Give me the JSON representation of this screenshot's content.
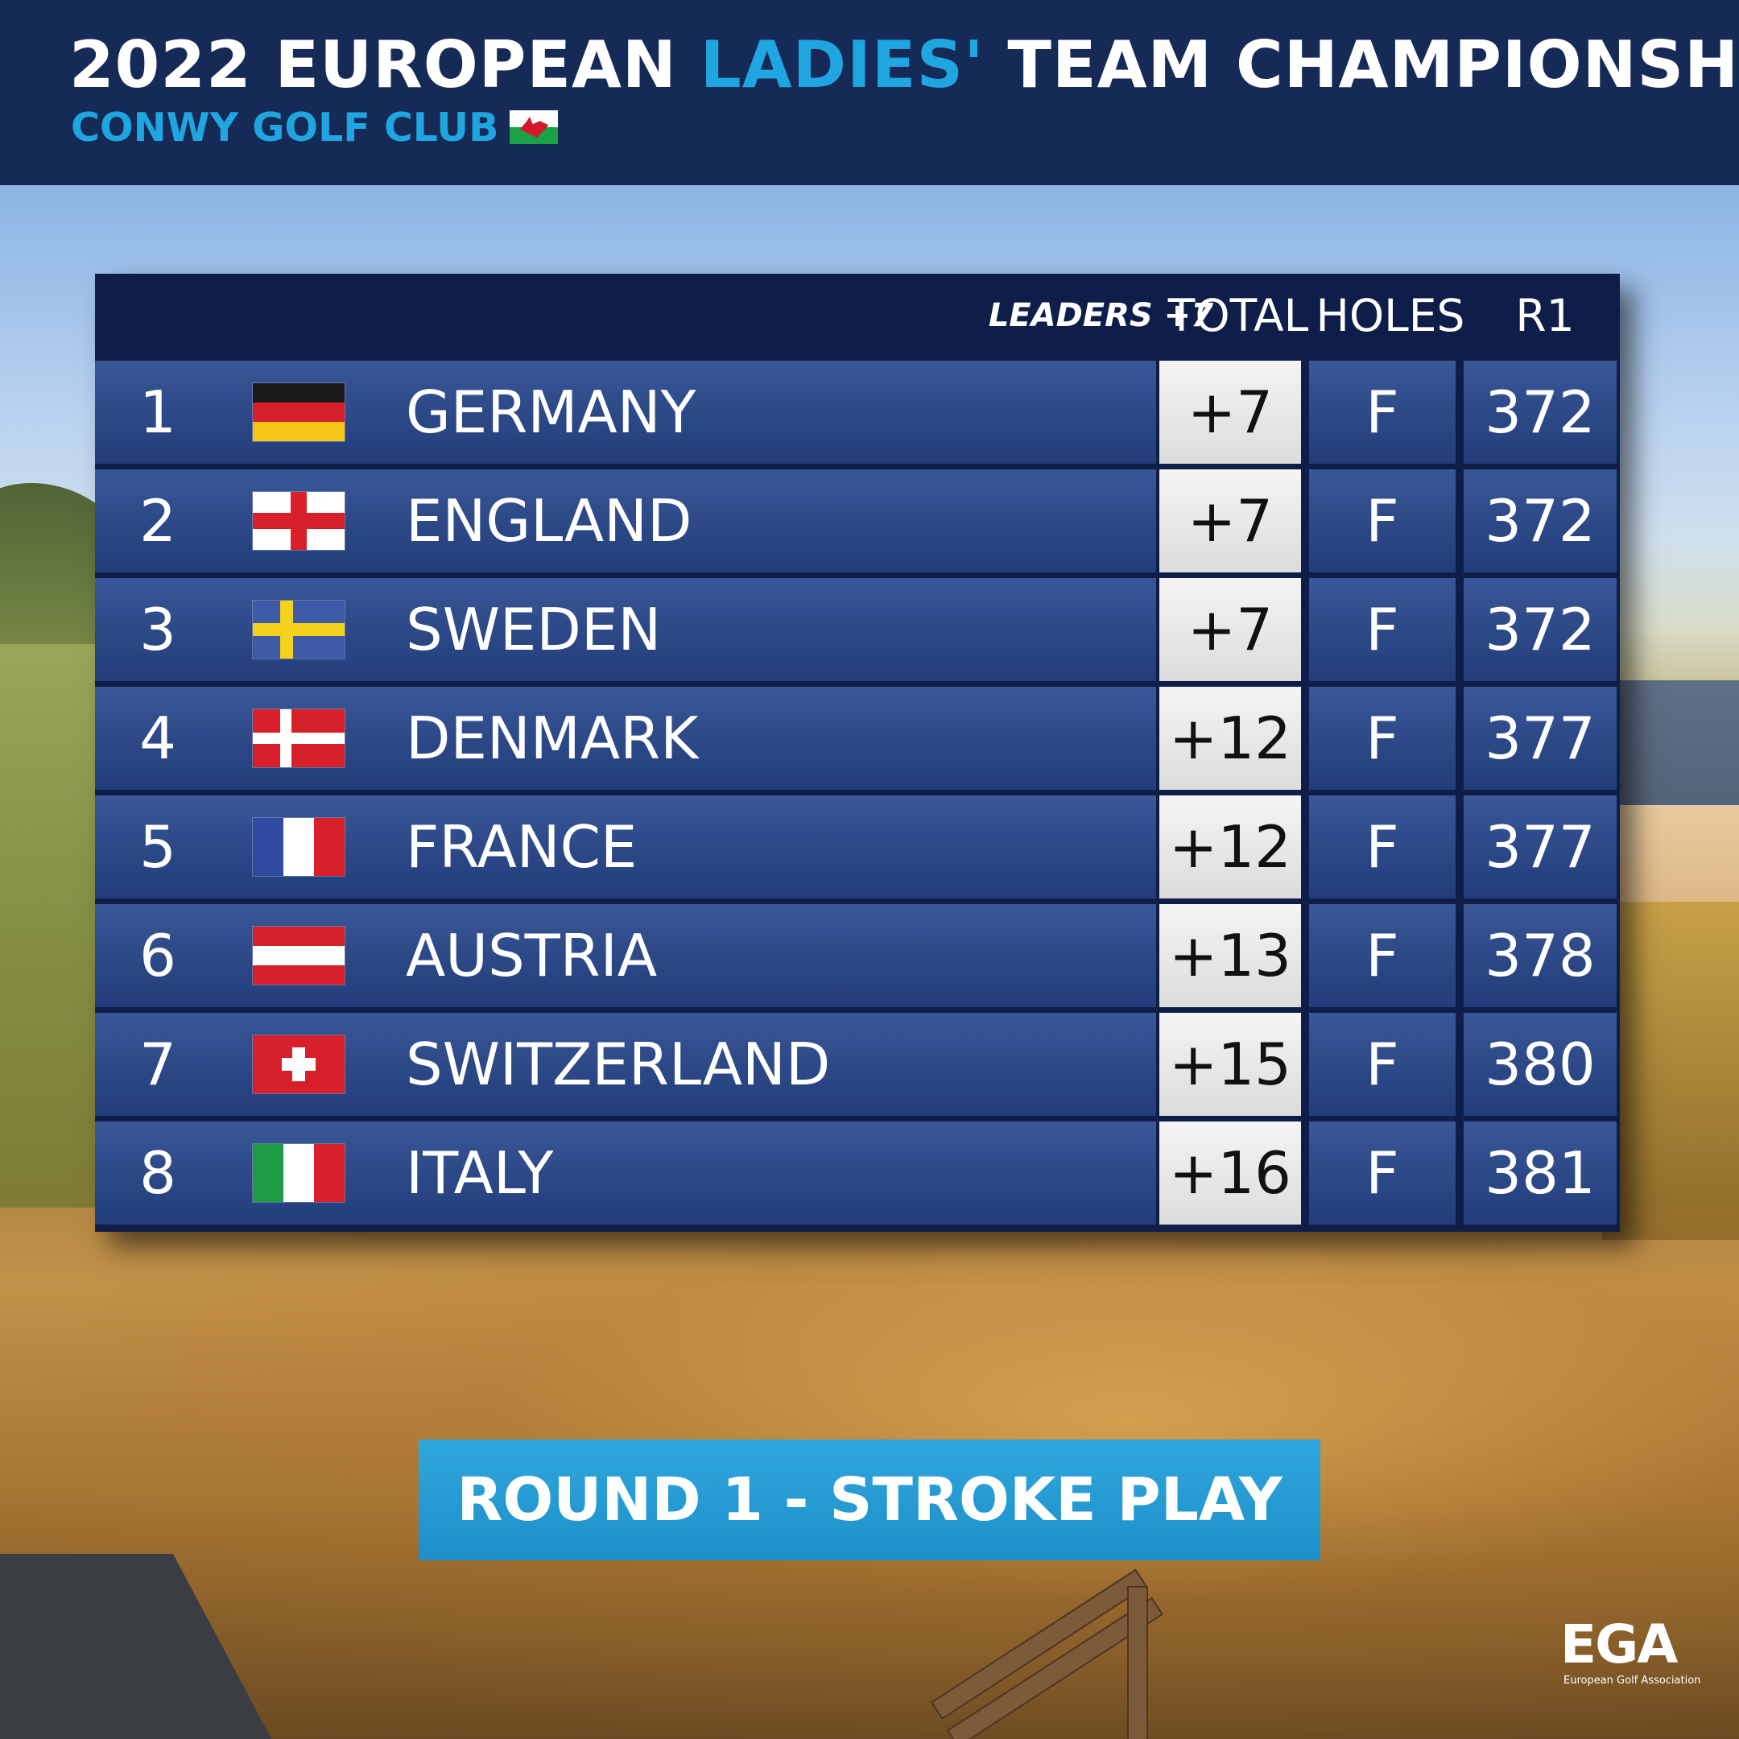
{
  "header": {
    "title_part1": "2022 EUROPEAN ",
    "title_accent": "LADIES'",
    "title_part2": " TEAM CHAMPIONSHIP",
    "subtitle": "CONWY GOLF CLUB"
  },
  "board": {
    "leaders_label": "LEADERS +7",
    "columns": {
      "total": "TOTAL",
      "holes": "HOLES",
      "r1": "R1"
    },
    "rows": [
      {
        "pos": "1",
        "country": "GERMANY",
        "flag": "germany-flag",
        "total": "+7",
        "holes": "F",
        "r1": "372"
      },
      {
        "pos": "2",
        "country": "ENGLAND",
        "flag": "england-flag",
        "total": "+7",
        "holes": "F",
        "r1": "372"
      },
      {
        "pos": "3",
        "country": "SWEDEN",
        "flag": "sweden-flag",
        "total": "+7",
        "holes": "F",
        "r1": "372"
      },
      {
        "pos": "4",
        "country": "DENMARK",
        "flag": "denmark-flag",
        "total": "+12",
        "holes": "F",
        "r1": "377"
      },
      {
        "pos": "5",
        "country": "FRANCE",
        "flag": "france-flag",
        "total": "+12",
        "holes": "F",
        "r1": "377"
      },
      {
        "pos": "6",
        "country": "AUSTRIA",
        "flag": "austria-flag",
        "total": "+13",
        "holes": "F",
        "r1": "378"
      },
      {
        "pos": "7",
        "country": "SWITZERLAND",
        "flag": "switzerland-flag",
        "total": "+15",
        "holes": "F",
        "r1": "380"
      },
      {
        "pos": "8",
        "country": "ITALY",
        "flag": "italy-flag",
        "total": "+16",
        "holes": "F",
        "r1": "381"
      }
    ]
  },
  "round_banner": "ROUND 1 - STROKE PLAY",
  "logo": {
    "mark": "EGA",
    "subtitle": "European Golf Association"
  },
  "colors": {
    "header_bg": "#162a57",
    "accent": "#1fa6e0",
    "row_blue": "#2e4a89",
    "total_cell": "#e6e6e6",
    "banner": "#2fa7dc"
  }
}
